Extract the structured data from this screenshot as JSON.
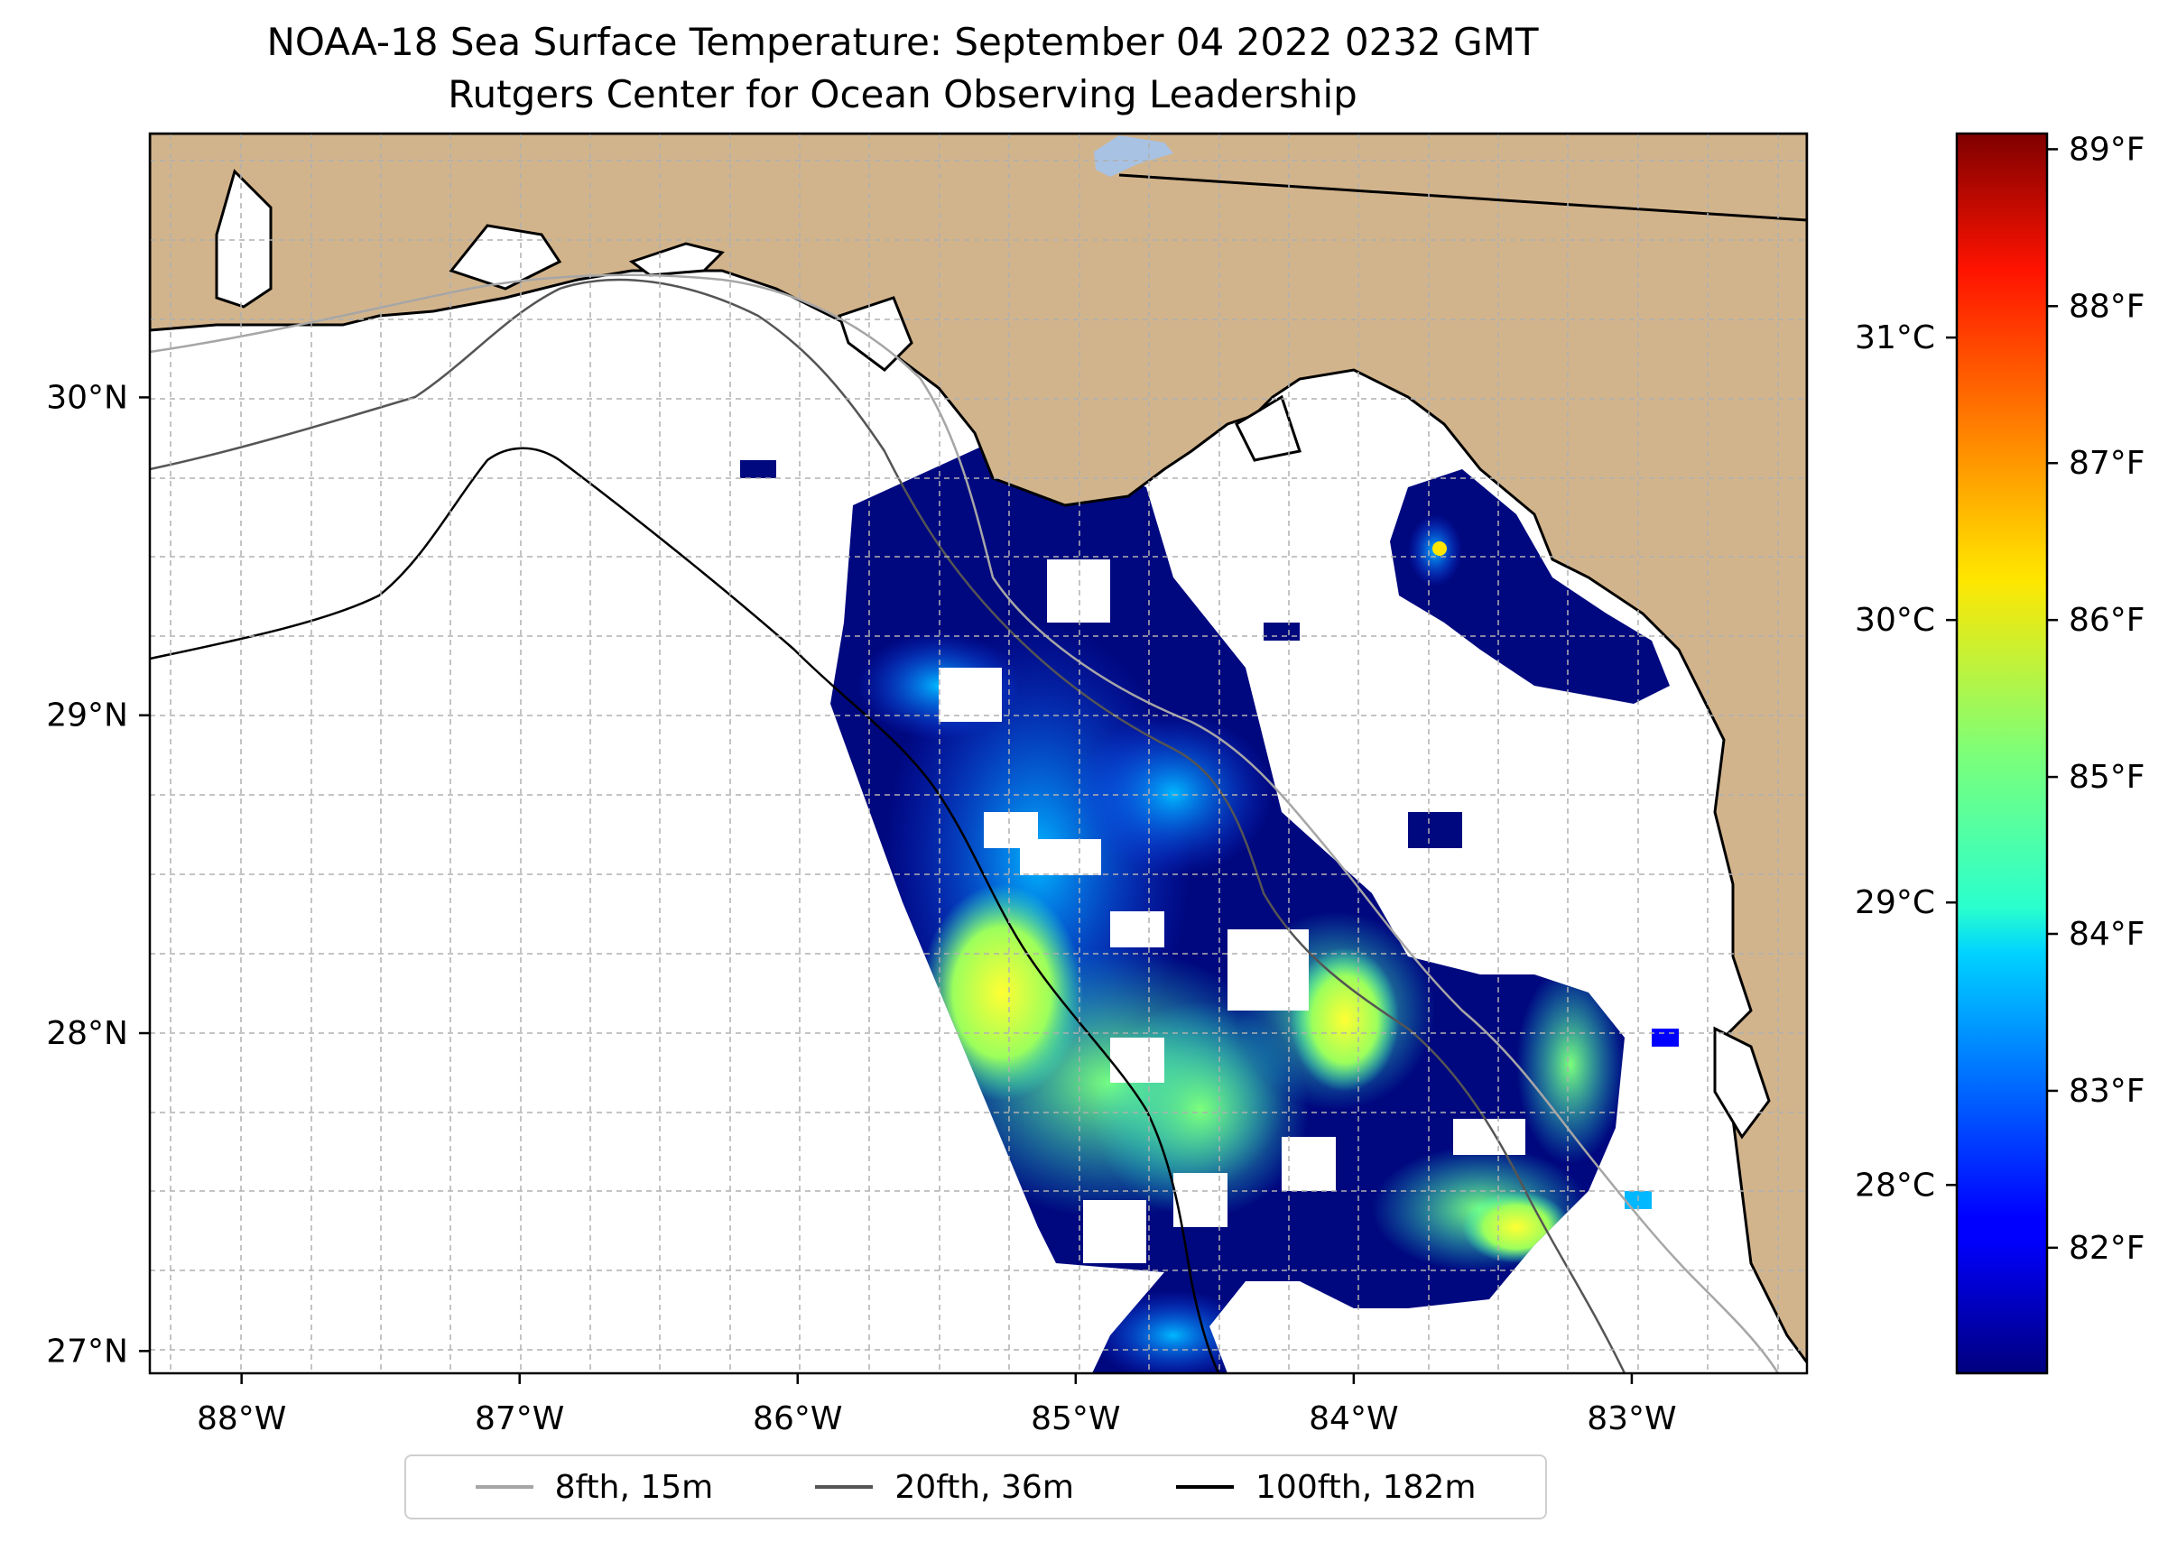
{
  "title": {
    "line1": "NOAA-18 Sea Surface Temperature: September 04 2022 0232 GMT",
    "line2": "Rutgers Center for Ocean Observing Leadership"
  },
  "map": {
    "extent": {
      "lon_min": -88.33,
      "lon_max": -82.37,
      "lat_min": 26.93,
      "lat_max": 30.83
    },
    "lon_ticks": [
      -88,
      -87,
      -86,
      -85,
      -84,
      -83
    ],
    "lon_tick_labels": [
      "88°W",
      "87°W",
      "86°W",
      "85°W",
      "84°W",
      "83°W"
    ],
    "lat_ticks": [
      27,
      28,
      29,
      30
    ],
    "lat_tick_labels": [
      "27°N",
      "28°N",
      "29°N",
      "30°N"
    ],
    "gridlines": "dashed",
    "land_color": "#d2b48c",
    "ocean_color": "#ffffff",
    "sst_colormap": "jet"
  },
  "legend": {
    "items": [
      {
        "label": "8fth, 15m",
        "color": "#a6a6a6"
      },
      {
        "label": "20fth, 36m",
        "color": "#555555"
      },
      {
        "label": "100fth, 182m",
        "color": "#000000"
      }
    ]
  },
  "colorbar": {
    "celsius_ticks": [
      28,
      29,
      30,
      31
    ],
    "celsius_labels": [
      "28°C",
      "29°C",
      "30°C",
      "31°C"
    ],
    "fahrenheit_ticks": [
      82,
      83,
      84,
      85,
      86,
      87,
      88,
      89
    ],
    "fahrenheit_labels": [
      "82°F",
      "83°F",
      "84°F",
      "85°F",
      "86°F",
      "87°F",
      "88°F",
      "89°F"
    ],
    "range_f": [
      81.2,
      89.1
    ]
  }
}
